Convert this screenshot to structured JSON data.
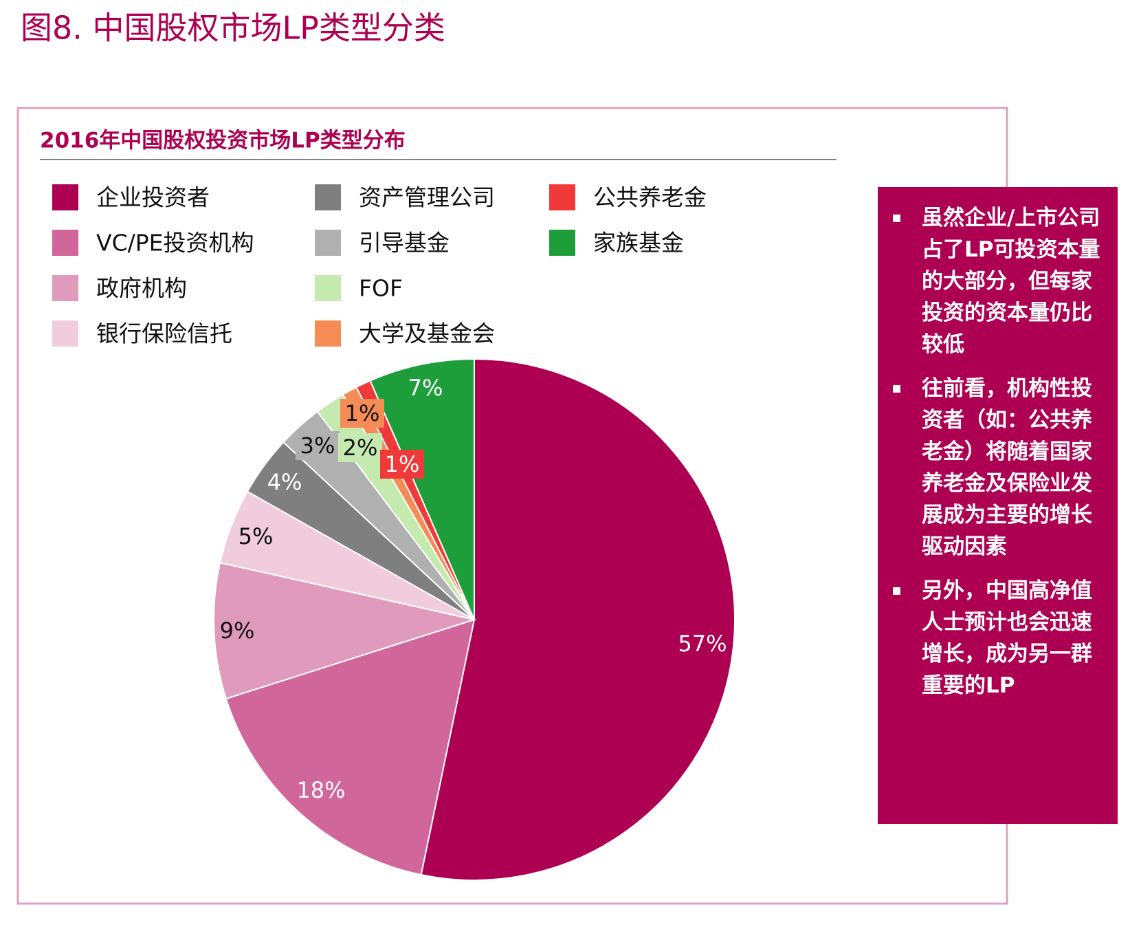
{
  "title": "图8. 中国股权市场LP类型分类",
  "chart_data": {
    "type": "pie",
    "title": "2016年中国股权投资市场LP类型分布",
    "categories": [
      "企业投资者",
      "VC/PE投资机构",
      "政府机构",
      "银行保险信托",
      "资产管理公司",
      "引导基金",
      "FOF",
      "大学及基金会",
      "公共养老金",
      "家族基金"
    ],
    "values": [
      57,
      18,
      9,
      5,
      4,
      3,
      2,
      1,
      1,
      7
    ],
    "value_labels": [
      "57%",
      "18%",
      "9%",
      "5%",
      "4%",
      "3%",
      "2%",
      "1%",
      "1%",
      "7%"
    ],
    "colors": [
      "#ad0052",
      "#d0669a",
      "#e09abb",
      "#f0ccdc",
      "#7f7f7f",
      "#b0b0b0",
      "#c5eab0",
      "#f58c55",
      "#f03a3a",
      "#1e9e3a"
    ]
  },
  "notes": [
    "虽然企业/上市公司占了LP可投资本量的大部分，但每家投资的资本量仍比较低",
    "往前看，机构性投资者（如：公共养老金）将随着国家养老金及保险业发展成为主要的增长驱动因素",
    "另外，中国高净值人士预计也会迅速增长，成为另一群重要的LP"
  ]
}
